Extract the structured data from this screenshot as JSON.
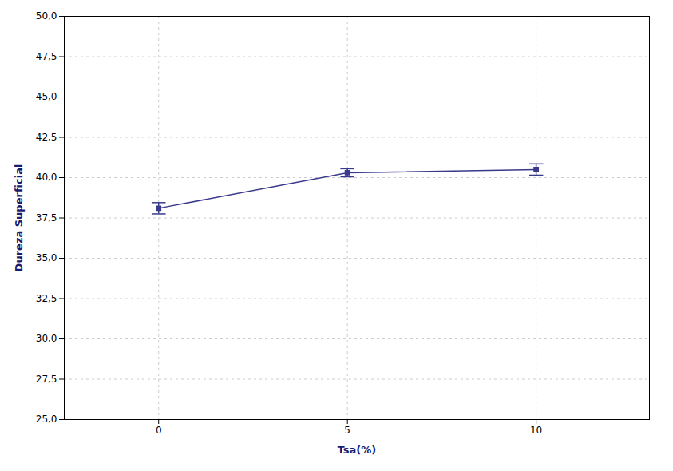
{
  "chart_data": {
    "type": "line",
    "x": [
      0,
      5,
      10
    ],
    "values": [
      38.1,
      40.3,
      40.5
    ],
    "yerr": [
      0.35,
      0.25,
      0.35
    ],
    "xlabel": "Tsa(%)",
    "ylabel": "Dureza Superficial",
    "xlim": [
      -2.5,
      13.0
    ],
    "xticks": [
      0,
      5,
      10
    ],
    "ylim": [
      25.0,
      50.0
    ],
    "yticks": [
      {
        "value": 25.0,
        "label": "25,0"
      },
      {
        "value": 27.5,
        "label": "27,5"
      },
      {
        "value": 30.0,
        "label": "30,0"
      },
      {
        "value": 32.5,
        "label": "32,5"
      },
      {
        "value": 35.0,
        "label": "35,0"
      },
      {
        "value": 37.5,
        "label": "37,5"
      },
      {
        "value": 40.0,
        "label": "40,0"
      },
      {
        "value": 42.5,
        "label": "42,5"
      },
      {
        "value": 45.0,
        "label": "45,0"
      },
      {
        "value": 47.5,
        "label": "47,5"
      },
      {
        "value": 50.0,
        "label": "50,0"
      }
    ],
    "grid": true,
    "color": "#3a3a8c",
    "marker": "square"
  }
}
